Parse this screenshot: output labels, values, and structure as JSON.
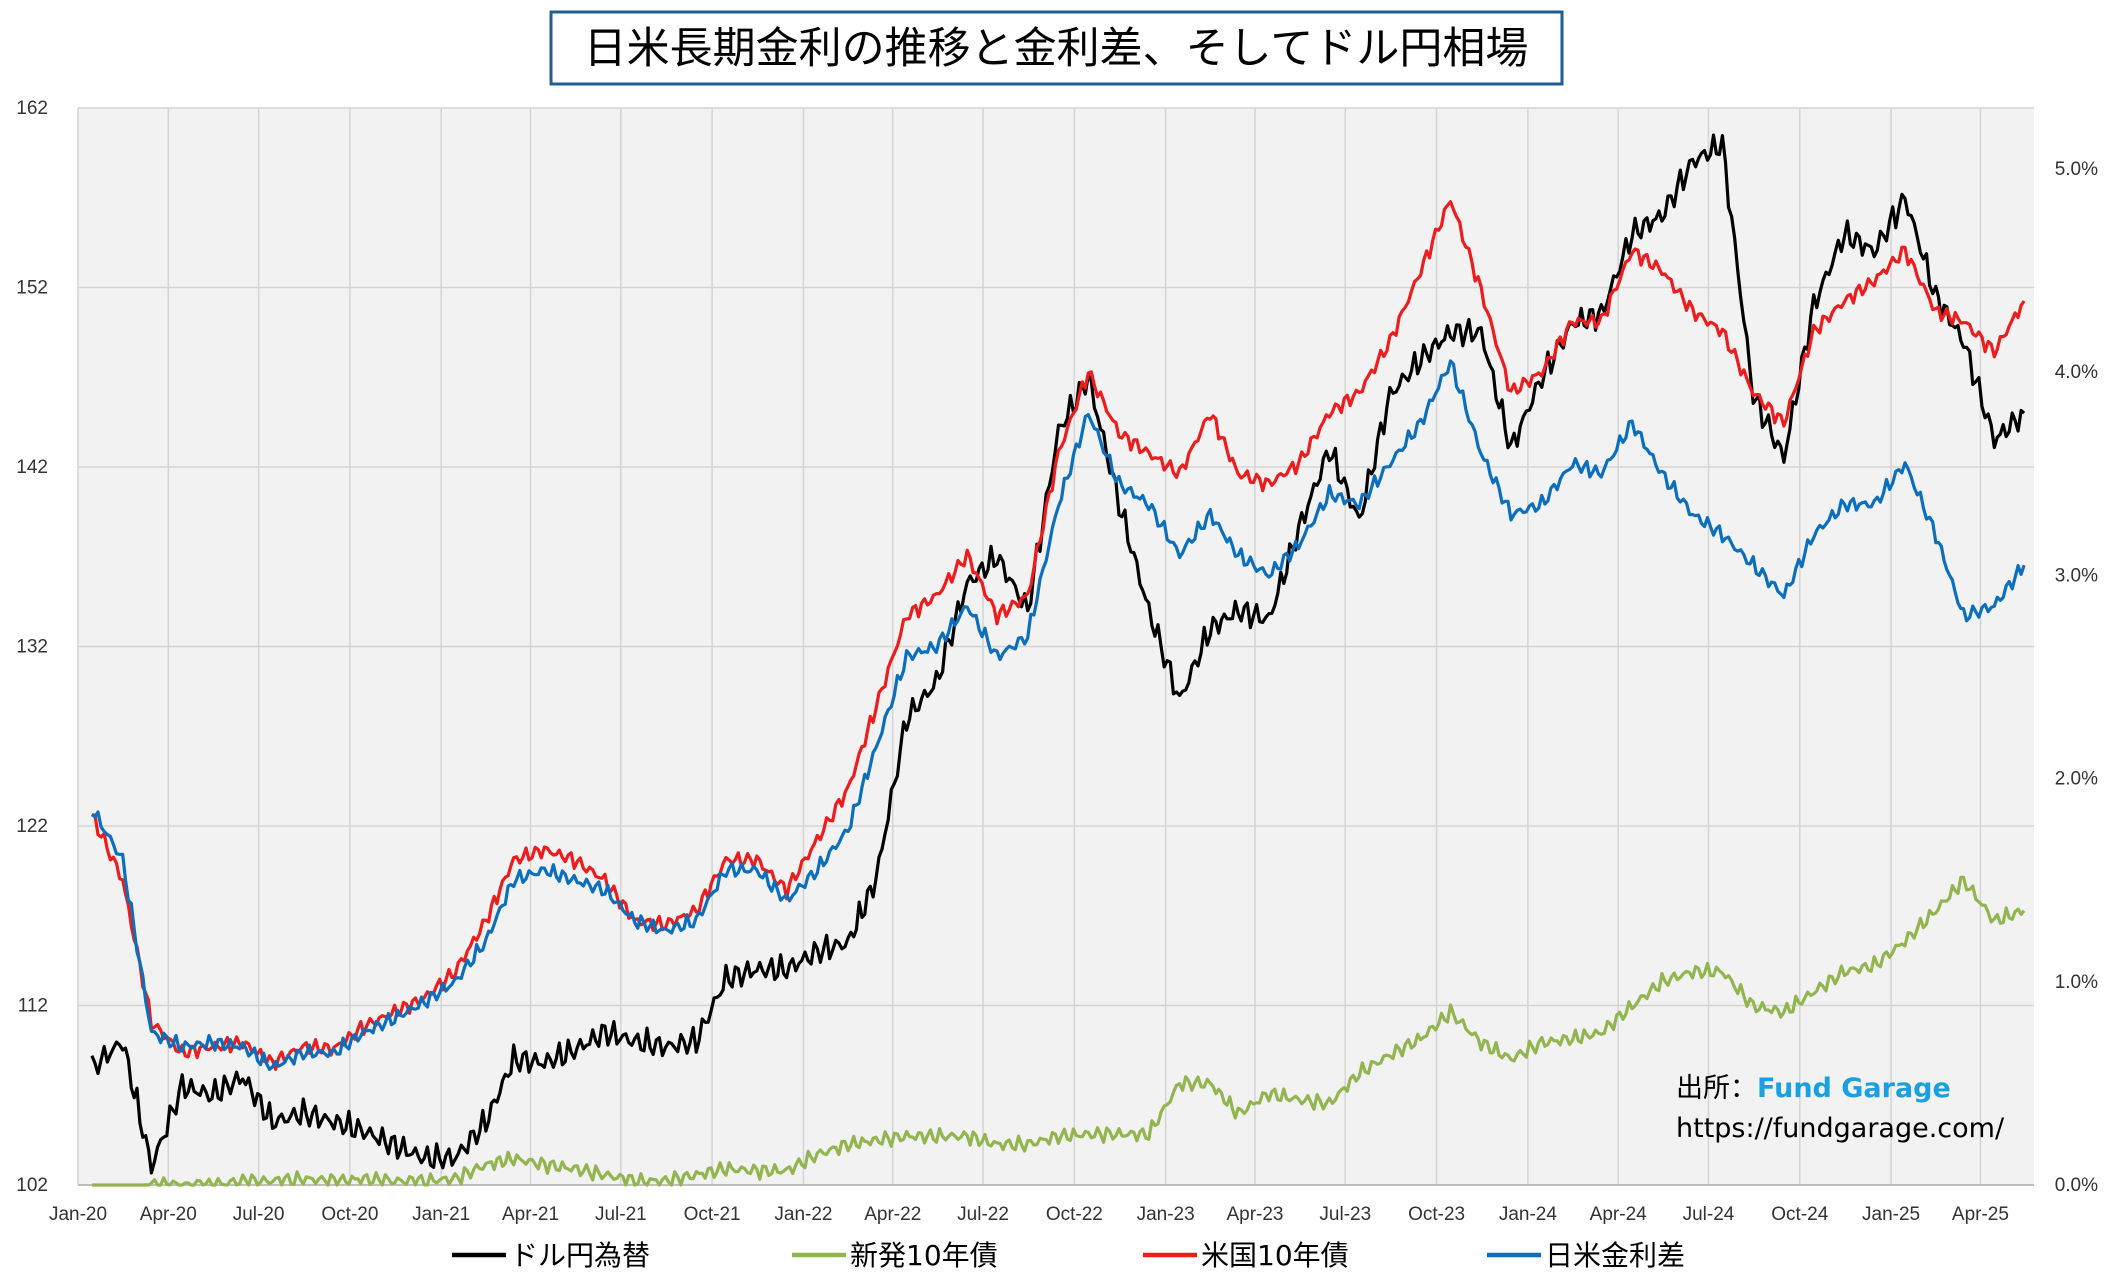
{
  "chart_data": {
    "type": "line",
    "title": "日米長期金利の推移と金利差、そしてドル円相場",
    "x_ticks": [
      "Jan-20",
      "Apr-20",
      "Jul-20",
      "Oct-20",
      "Jan-21",
      "Apr-21",
      "Jul-21",
      "Oct-21",
      "Jan-22",
      "Apr-22",
      "Jul-22",
      "Oct-22",
      "Jan-23",
      "Apr-23",
      "Jul-23",
      "Oct-23",
      "Jan-24",
      "Apr-24",
      "Jul-24",
      "Oct-24",
      "Jan-25",
      "Apr-25"
    ],
    "y_left": {
      "ylim": [
        102,
        162
      ],
      "ticks": [
        "102",
        "112",
        "122",
        "132",
        "142",
        "152",
        "162"
      ]
    },
    "y_right": {
      "ylim": [
        0.0,
        5.3
      ],
      "ticks": [
        "0.0%",
        "1.0%",
        "2.0%",
        "3.0%",
        "4.0%",
        "5.0%"
      ]
    },
    "grid": true,
    "legend_position": "bottom",
    "series": [
      {
        "name": "ドル円為替",
        "axis": "left",
        "color": "#000000",
        "x": [
          "2020-01",
          "2020-02",
          "2020-03",
          "2020-04",
          "2020-05",
          "2020-06",
          "2020-07",
          "2020-08",
          "2020-09",
          "2020-10",
          "2020-11",
          "2020-12",
          "2021-01",
          "2021-02",
          "2021-03",
          "2021-04",
          "2021-05",
          "2021-06",
          "2021-07",
          "2021-08",
          "2021-09",
          "2021-10",
          "2021-11",
          "2021-12",
          "2022-01",
          "2022-02",
          "2022-03",
          "2022-04",
          "2022-05",
          "2022-06",
          "2022-07",
          "2022-08",
          "2022-09",
          "2022-10",
          "2022-11",
          "2022-12",
          "2023-01",
          "2023-02",
          "2023-03",
          "2023-04",
          "2023-05",
          "2023-06",
          "2023-07",
          "2023-08",
          "2023-09",
          "2023-10",
          "2023-11",
          "2023-12",
          "2024-01",
          "2024-02",
          "2024-03",
          "2024-04",
          "2024-05",
          "2024-06",
          "2024-07",
          "2024-08",
          "2024-09",
          "2024-10",
          "2024-11",
          "2024-12",
          "2025-01",
          "2025-02",
          "2025-03",
          "2025-04",
          "2025-05"
        ],
        "values": [
          108.5,
          110,
          103,
          107.5,
          107,
          108,
          105.5,
          106,
          105.5,
          105,
          104.2,
          103.5,
          103.5,
          105.5,
          109,
          108.8,
          109.5,
          110.5,
          110,
          109.7,
          110,
          113.5,
          114,
          114,
          115,
          115.5,
          119,
          128,
          130,
          135.5,
          137,
          134,
          144,
          147,
          140,
          134,
          129,
          133,
          134,
          133.5,
          138.5,
          143,
          139,
          146,
          148,
          149.5,
          149.5,
          143,
          147,
          150,
          150.5,
          155,
          156,
          159,
          160,
          146,
          142.5,
          151,
          155,
          154,
          157,
          151.5,
          149,
          143.5,
          145
        ]
      },
      {
        "name": "新発10年債",
        "axis": "right",
        "color": "#92b550",
        "x": [
          "2020-01",
          "2020-02",
          "2020-03",
          "2020-04",
          "2020-05",
          "2020-06",
          "2020-07",
          "2020-08",
          "2020-09",
          "2020-10",
          "2020-11",
          "2020-12",
          "2021-01",
          "2021-02",
          "2021-03",
          "2021-04",
          "2021-05",
          "2021-06",
          "2021-07",
          "2021-08",
          "2021-09",
          "2021-10",
          "2021-11",
          "2021-12",
          "2022-01",
          "2022-02",
          "2022-03",
          "2022-04",
          "2022-05",
          "2022-06",
          "2022-07",
          "2022-08",
          "2022-09",
          "2022-10",
          "2022-11",
          "2022-12",
          "2023-01",
          "2023-02",
          "2023-03",
          "2023-04",
          "2023-05",
          "2023-06",
          "2023-07",
          "2023-08",
          "2023-09",
          "2023-10",
          "2023-11",
          "2023-12",
          "2024-01",
          "2024-02",
          "2024-03",
          "2024-04",
          "2024-05",
          "2024-06",
          "2024-07",
          "2024-08",
          "2024-09",
          "2024-10",
          "2024-11",
          "2024-12",
          "2025-01",
          "2025-02",
          "2025-03",
          "2025-04",
          "2025-05"
        ],
        "values": [
          0.0,
          -0.05,
          0.0,
          0.0,
          0.0,
          0.02,
          0.02,
          0.03,
          0.02,
          0.03,
          0.02,
          0.02,
          0.03,
          0.1,
          0.13,
          0.1,
          0.08,
          0.05,
          0.02,
          0.02,
          0.05,
          0.08,
          0.07,
          0.07,
          0.15,
          0.2,
          0.22,
          0.24,
          0.24,
          0.24,
          0.2,
          0.2,
          0.24,
          0.25,
          0.25,
          0.25,
          0.5,
          0.5,
          0.35,
          0.45,
          0.42,
          0.4,
          0.55,
          0.64,
          0.72,
          0.85,
          0.7,
          0.62,
          0.7,
          0.72,
          0.75,
          0.88,
          1.0,
          1.05,
          1.05,
          0.88,
          0.85,
          0.95,
          1.05,
          1.08,
          1.2,
          1.35,
          1.5,
          1.3,
          1.35
        ]
      },
      {
        "name": "米国10年債",
        "axis": "right",
        "color": "#ee1c1c",
        "x": [
          "2020-01",
          "2020-02",
          "2020-03",
          "2020-04",
          "2020-05",
          "2020-06",
          "2020-07",
          "2020-08",
          "2020-09",
          "2020-10",
          "2020-11",
          "2020-12",
          "2021-01",
          "2021-02",
          "2021-03",
          "2021-04",
          "2021-05",
          "2021-06",
          "2021-07",
          "2021-08",
          "2021-09",
          "2021-10",
          "2021-11",
          "2021-12",
          "2022-01",
          "2022-02",
          "2022-03",
          "2022-04",
          "2022-05",
          "2022-06",
          "2022-07",
          "2022-08",
          "2022-09",
          "2022-10",
          "2022-11",
          "2022-12",
          "2023-01",
          "2023-02",
          "2023-03",
          "2023-04",
          "2023-05",
          "2023-06",
          "2023-07",
          "2023-08",
          "2023-09",
          "2023-10",
          "2023-11",
          "2023-12",
          "2024-01",
          "2024-02",
          "2024-03",
          "2024-04",
          "2024-05",
          "2024-06",
          "2024-07",
          "2024-08",
          "2024-09",
          "2024-10",
          "2024-11",
          "2024-12",
          "2025-01",
          "2025-02",
          "2025-03",
          "2025-04",
          "2025-05"
        ],
        "values": [
          1.82,
          1.5,
          0.8,
          0.65,
          0.68,
          0.7,
          0.6,
          0.68,
          0.67,
          0.78,
          0.85,
          0.92,
          1.05,
          1.3,
          1.6,
          1.65,
          1.6,
          1.5,
          1.3,
          1.28,
          1.35,
          1.6,
          1.6,
          1.45,
          1.7,
          1.95,
          2.35,
          2.8,
          2.9,
          3.1,
          2.8,
          2.9,
          3.6,
          4.0,
          3.7,
          3.6,
          3.5,
          3.8,
          3.5,
          3.45,
          3.55,
          3.8,
          3.9,
          4.15,
          4.5,
          4.85,
          4.4,
          3.9,
          4.0,
          4.25,
          4.25,
          4.6,
          4.5,
          4.3,
          4.2,
          3.9,
          3.75,
          4.2,
          4.35,
          4.45,
          4.6,
          4.3,
          4.25,
          4.1,
          4.35
        ]
      },
      {
        "name": "日米金利差",
        "axis": "right",
        "color": "#0b6fbd",
        "x": [
          "2020-01",
          "2020-02",
          "2020-03",
          "2020-04",
          "2020-05",
          "2020-06",
          "2020-07",
          "2020-08",
          "2020-09",
          "2020-10",
          "2020-11",
          "2020-12",
          "2021-01",
          "2021-02",
          "2021-03",
          "2021-04",
          "2021-05",
          "2021-06",
          "2021-07",
          "2021-08",
          "2021-09",
          "2021-10",
          "2021-11",
          "2021-12",
          "2022-01",
          "2022-02",
          "2022-03",
          "2022-04",
          "2022-05",
          "2022-06",
          "2022-07",
          "2022-08",
          "2022-09",
          "2022-10",
          "2022-11",
          "2022-12",
          "2023-01",
          "2023-02",
          "2023-03",
          "2023-04",
          "2023-05",
          "2023-06",
          "2023-07",
          "2023-08",
          "2023-09",
          "2023-10",
          "2023-11",
          "2023-12",
          "2024-01",
          "2024-02",
          "2024-03",
          "2024-04",
          "2024-05",
          "2024-06",
          "2024-07",
          "2024-08",
          "2024-09",
          "2024-10",
          "2024-11",
          "2024-12",
          "2025-01",
          "2025-02",
          "2025-03",
          "2025-04",
          "2025-05"
        ],
        "values": [
          1.85,
          1.6,
          0.75,
          0.68,
          0.7,
          0.68,
          0.58,
          0.65,
          0.65,
          0.75,
          0.82,
          0.9,
          1.0,
          1.2,
          1.5,
          1.55,
          1.5,
          1.45,
          1.3,
          1.25,
          1.3,
          1.55,
          1.55,
          1.4,
          1.55,
          1.75,
          2.15,
          2.6,
          2.65,
          2.85,
          2.6,
          2.7,
          3.35,
          3.8,
          3.45,
          3.35,
          3.1,
          3.3,
          3.1,
          3.0,
          3.15,
          3.4,
          3.35,
          3.55,
          3.75,
          4.05,
          3.6,
          3.3,
          3.35,
          3.55,
          3.5,
          3.75,
          3.5,
          3.3,
          3.2,
          3.05,
          2.9,
          3.2,
          3.35,
          3.35,
          3.55,
          3.2,
          2.8,
          2.85,
          3.05
        ]
      }
    ],
    "source": {
      "label": "出所：",
      "brand": "Fund Garage",
      "url": "https://fundgarage.com/"
    }
  }
}
